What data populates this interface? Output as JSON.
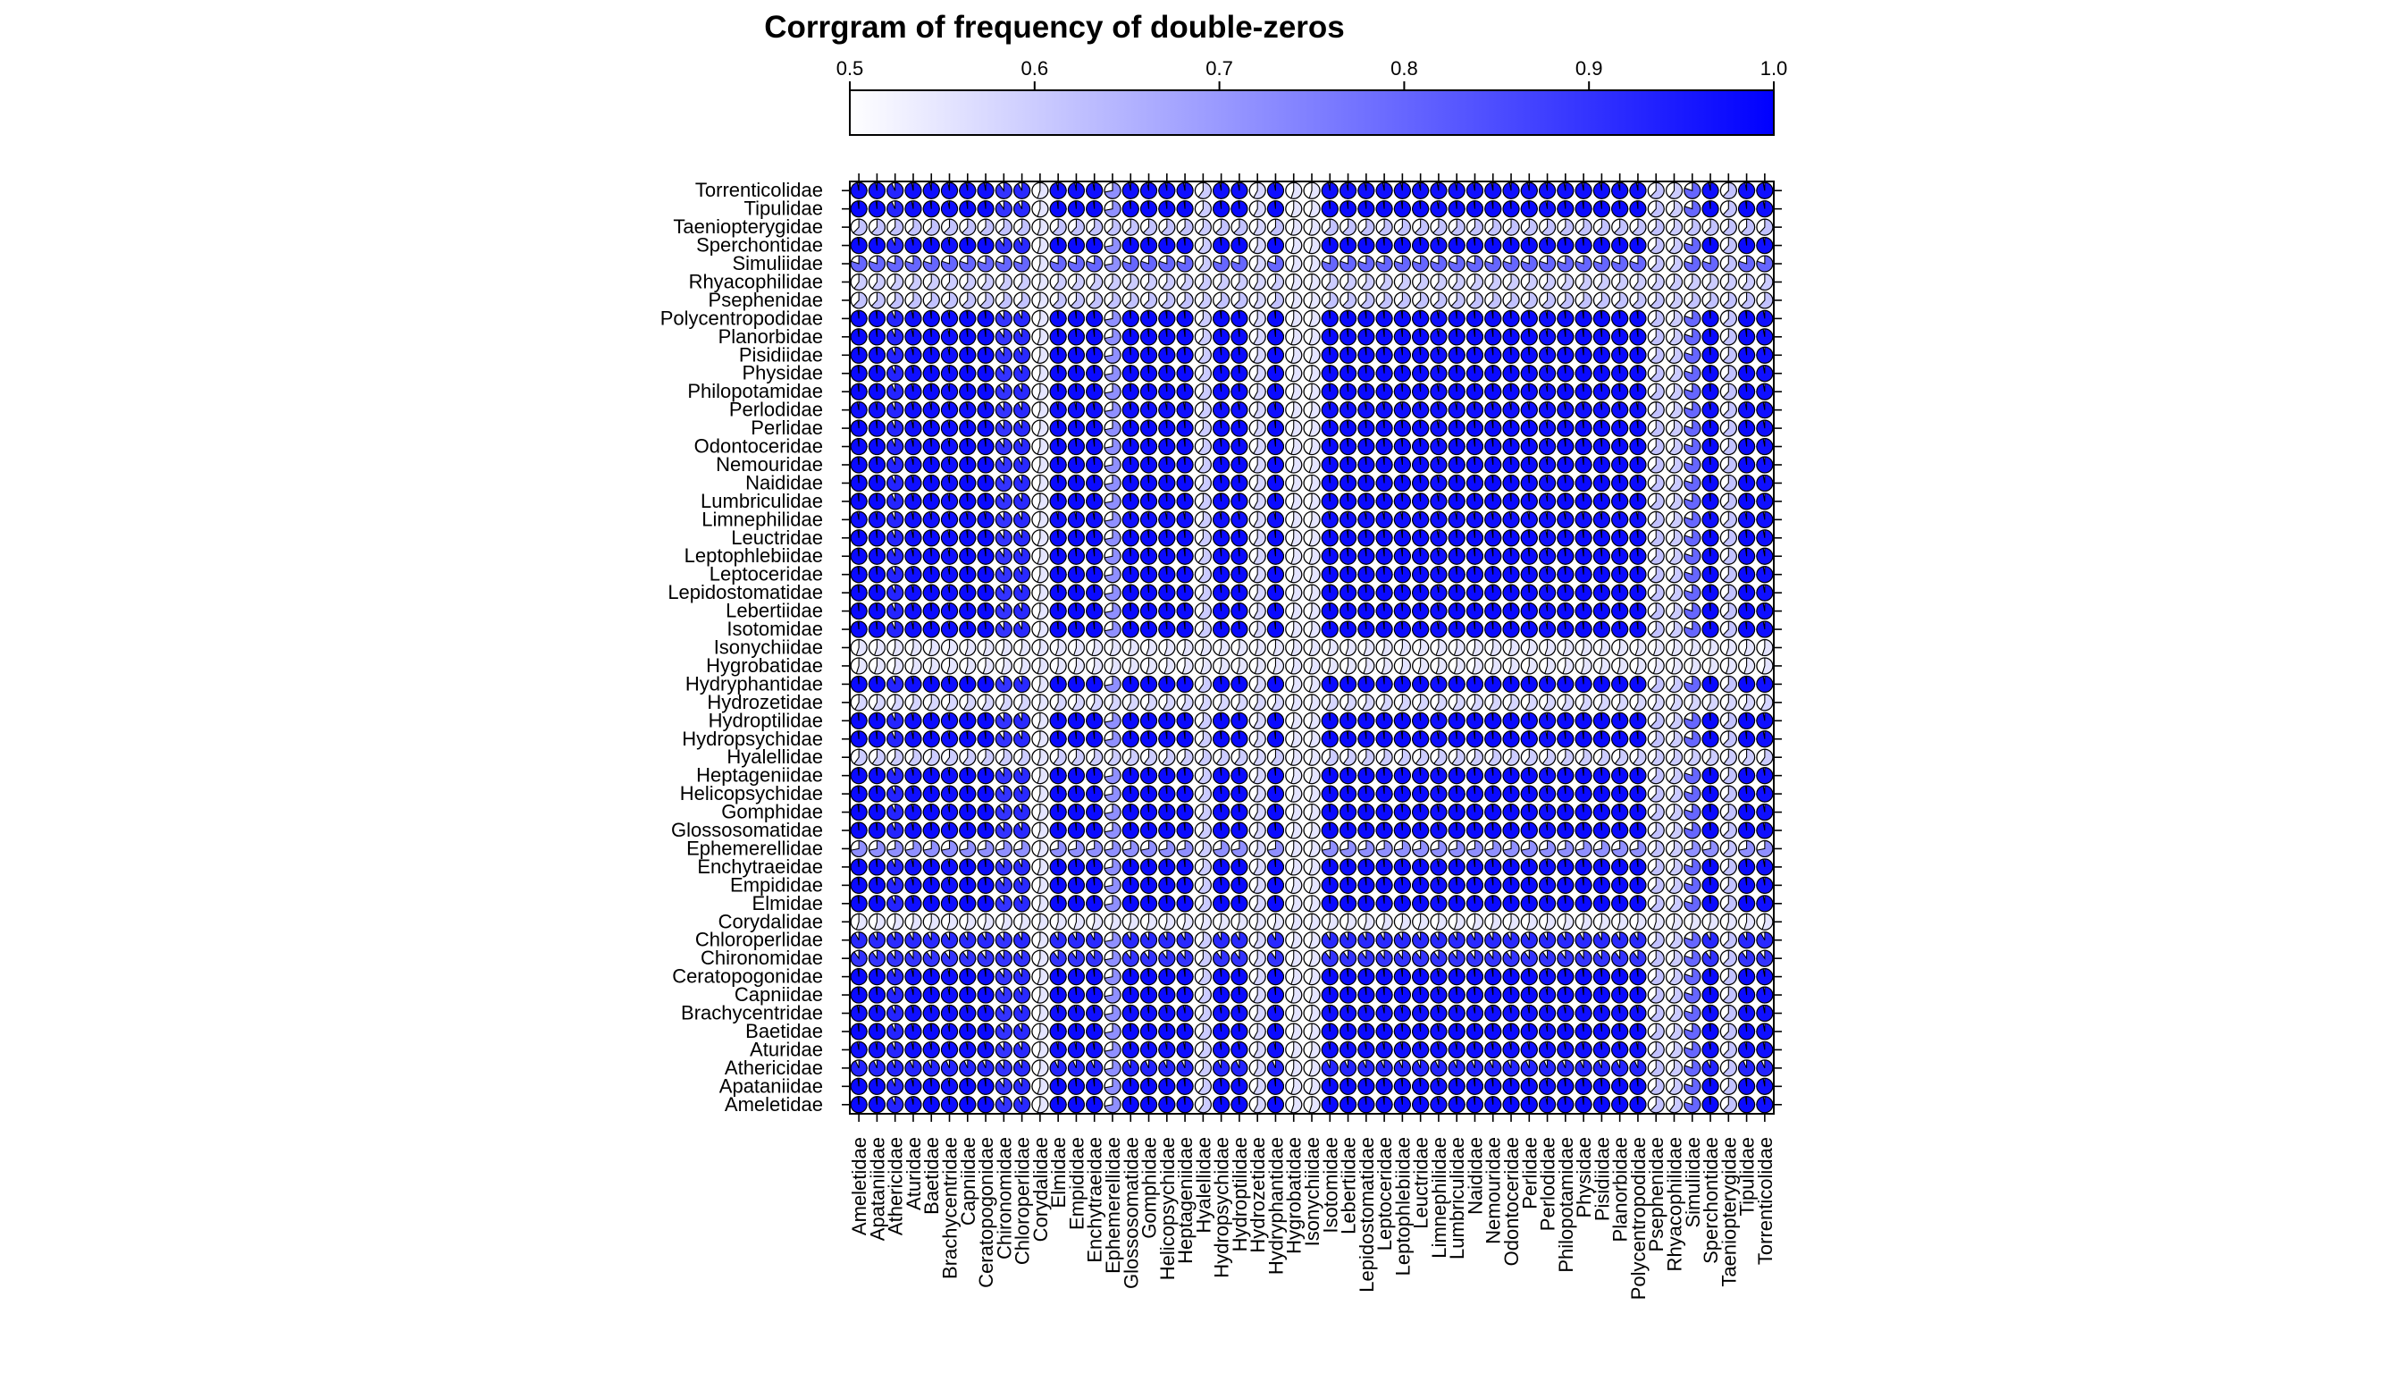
{
  "chart_data": {
    "type": "heatmap",
    "title": "Corrgram of frequency of double-zeros",
    "colorbar": {
      "min": 0.5,
      "max": 1.0,
      "ticks": [
        0.5,
        0.6,
        0.7,
        0.8,
        0.9,
        1.0
      ],
      "tick_labels": [
        "0.5",
        "0.6",
        "0.7",
        "0.8",
        "0.9",
        "1.0"
      ],
      "low_color": "#ffffff",
      "high_color": "#0000ff",
      "placement": "top"
    },
    "cell_style": "pie",
    "row_labels_top_to_bottom": [
      "Torrenticolidae",
      "Tipulidae",
      "Taeniopterygidae",
      "Sperchontidae",
      "Simuliidae",
      "Rhyacophilidae",
      "Psephenidae",
      "Polycentropodidae",
      "Planorbidae",
      "Pisidiidae",
      "Physidae",
      "Philopotamidae",
      "Perlodidae",
      "Perlidae",
      "Odontoceridae",
      "Nemouridae",
      "Naididae",
      "Lumbriculidae",
      "Limnephilidae",
      "Leuctridae",
      "Leptophlebiidae",
      "Leptoceridae",
      "Lepidostomatidae",
      "Lebertiidae",
      "Isotomidae",
      "Isonychiidae",
      "Hygrobatidae",
      "Hydryphantidae",
      "Hydrozetidae",
      "Hydroptilidae",
      "Hydropsychidae",
      "Hyalellidae",
      "Heptageniidae",
      "Helicopsychidae",
      "Gomphidae",
      "Glossosomatidae",
      "Ephemerellidae",
      "Enchytraeidae",
      "Empididae",
      "Elmidae",
      "Corydalidae",
      "Chloroperlidae",
      "Chironomidae",
      "Ceratopogonidae",
      "Capniidae",
      "Brachycentridae",
      "Baetidae",
      "Aturidae",
      "Athericidae",
      "Apataniidae",
      "Ameletidae"
    ],
    "column_labels_left_to_right": [
      "Ameletidae",
      "Apataniidae",
      "Athericidae",
      "Aturidae",
      "Baetidae",
      "Brachycentridae",
      "Capniidae",
      "Ceratopogonidae",
      "Chironomidae",
      "Chloroperlidae",
      "Corydalidae",
      "Elmidae",
      "Empididae",
      "Enchytraeidae",
      "Ephemerellidae",
      "Glossosomatidae",
      "Gomphidae",
      "Helicopsychidae",
      "Heptageniidae",
      "Hyalellidae",
      "Hydropsychidae",
      "Hydroptilidae",
      "Hydrozetidae",
      "Hydryphantidae",
      "Hygrobatidae",
      "Isonychiidae",
      "Isotomidae",
      "Lebertiidae",
      "Lepidostomatidae",
      "Leptoceridae",
      "Leptophlebiidae",
      "Leuctridae",
      "Limnephilidae",
      "Lumbriculidae",
      "Naididae",
      "Nemouridae",
      "Odontoceridae",
      "Perlidae",
      "Perlodidae",
      "Philopotamidae",
      "Physidae",
      "Pisidiidae",
      "Planorbidae",
      "Polycentropodidae",
      "Psephenidae",
      "Rhyacophilidae",
      "Simuliidae",
      "Sperchontidae",
      "Taeniopterygidae",
      "Tipulidae",
      "Torrenticolidae"
    ],
    "taxon_level": {
      "Ameletidae": 0.98,
      "Apataniidae": 0.98,
      "Athericidae": 0.93,
      "Aturidae": 0.97,
      "Baetidae": 0.98,
      "Brachycentridae": 0.97,
      "Capniidae": 0.98,
      "Ceratopogonidae": 0.98,
      "Chironomidae": 0.9,
      "Chloroperlidae": 0.92,
      "Corydalidae": 0.55,
      "Elmidae": 0.98,
      "Empididae": 0.98,
      "Enchytraeidae": 0.98,
      "Ephemerellidae": 0.72,
      "Glossosomatidae": 0.98,
      "Gomphidae": 0.98,
      "Helicopsychidae": 0.98,
      "Heptageniidae": 0.98,
      "Hyalellidae": 0.6,
      "Hydropsychidae": 0.98,
      "Hydroptilidae": 0.98,
      "Hydrozetidae": 0.58,
      "Hydryphantidae": 0.98,
      "Hygrobatidae": 0.55,
      "Isonychiidae": 0.55,
      "Isotomidae": 0.98,
      "Lebertiidae": 0.98,
      "Lepidostomatidae": 0.98,
      "Leptoceridae": 0.98,
      "Leptophlebiidae": 0.98,
      "Leuctridae": 0.98,
      "Limnephilidae": 0.97,
      "Lumbriculidae": 0.98,
      "Naididae": 0.98,
      "Nemouridae": 0.98,
      "Odontoceridae": 0.98,
      "Perlidae": 0.98,
      "Perlodidae": 0.97,
      "Philopotamidae": 0.98,
      "Physidae": 0.98,
      "Pisidiidae": 0.98,
      "Planorbidae": 0.98,
      "Polycentropodidae": 0.98,
      "Psephenidae": 0.62,
      "Rhyacophilidae": 0.6,
      "Simuliidae": 0.8,
      "Sperchontidae": 0.98,
      "Taeniopterygidae": 0.62,
      "Tipulidae": 0.98,
      "Torrenticolidae": 0.97
    },
    "xlabel": "",
    "ylabel": "",
    "grid": false
  }
}
